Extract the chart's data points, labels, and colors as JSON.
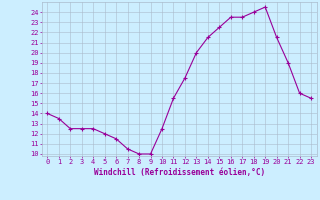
{
  "x": [
    0,
    1,
    2,
    3,
    4,
    5,
    6,
    7,
    8,
    9,
    10,
    11,
    12,
    13,
    14,
    15,
    16,
    17,
    18,
    19,
    20,
    21,
    22,
    23
  ],
  "y": [
    14.0,
    13.5,
    12.5,
    12.5,
    12.5,
    12.0,
    11.5,
    10.5,
    10.0,
    10.0,
    12.5,
    15.5,
    17.5,
    20.0,
    21.5,
    22.5,
    23.5,
    23.5,
    24.0,
    24.5,
    21.5,
    19.0,
    16.0,
    15.5
  ],
  "line_color": "#990099",
  "marker": "+",
  "marker_size": 3,
  "marker_linewidth": 0.8,
  "bg_color": "#cceeff",
  "grid_color": "#aabbcc",
  "xlabel": "Windchill (Refroidissement éolien,°C)",
  "ylabel": "",
  "xlim": [
    -0.5,
    23.5
  ],
  "ylim": [
    9.8,
    25.0
  ],
  "yticks": [
    10,
    11,
    12,
    13,
    14,
    15,
    16,
    17,
    18,
    19,
    20,
    21,
    22,
    23,
    24
  ],
  "xticks": [
    0,
    1,
    2,
    3,
    4,
    5,
    6,
    7,
    8,
    9,
    10,
    11,
    12,
    13,
    14,
    15,
    16,
    17,
    18,
    19,
    20,
    21,
    22,
    23
  ],
  "tick_color": "#990099",
  "label_color": "#990099",
  "label_fontsize": 5.5,
  "tick_fontsize": 5.0,
  "linewidth": 0.8
}
